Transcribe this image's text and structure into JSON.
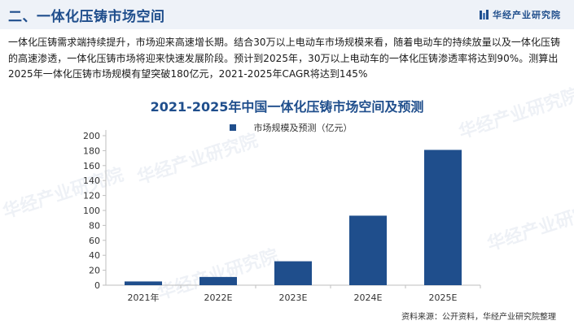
{
  "header": {
    "title": "二、一体化压铸市场空间",
    "brand": "华经产业研究院"
  },
  "intro_text": "一体化压铸需求端持续提升，市场迎来高速增长期。结合30万以上电动车市场规模来看，随着电动车的持续放量以及一体化压铸的高速渗透，一体化压铸市场将迎来快速发展阶段。预计到2025年，30万以上电动车的一体化压铸渗透率将达到90%。测算出2025年一体化压铸市场规模有望突破180亿元，2021-2025年CAGR将达到145%",
  "watermark": "华经产业研究院",
  "source": "资料来源：公开资料，华经产业研究院整理",
  "colors": {
    "bar": "#1f4e8c",
    "title": "#1f4e8c",
    "axis": "#bfbfbf"
  },
  "chart_data": {
    "type": "bar",
    "title": "2021-2025年中国一体化压铸市场空间及预测",
    "categories": [
      "2021年",
      "2022E",
      "2023E",
      "2024E",
      "2025E"
    ],
    "series": [
      {
        "name": "市场规模及预测（亿元）",
        "values": [
          5,
          11,
          32,
          93,
          181
        ]
      }
    ],
    "ylim": [
      0,
      200
    ],
    "yticks": [
      0,
      20,
      40,
      60,
      80,
      100,
      120,
      140,
      160,
      180,
      200
    ],
    "grid": false,
    "legend": "top-center"
  }
}
